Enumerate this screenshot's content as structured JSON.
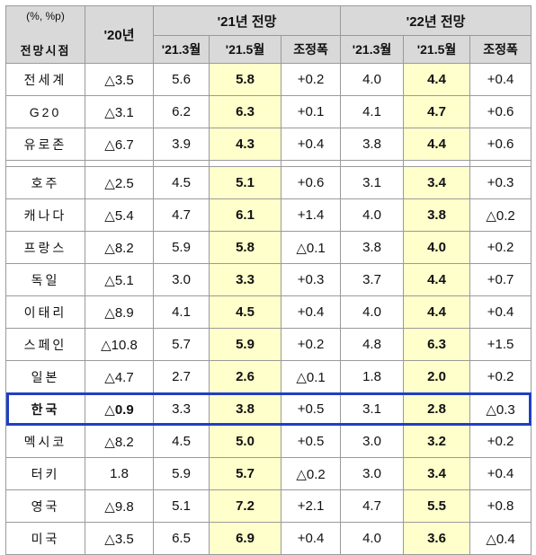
{
  "header": {
    "unit": "(%, %p)",
    "row_label": "전망시점",
    "year_20": "'20년",
    "group_21": "'21년 전망",
    "group_22": "'22년 전망",
    "sub_213": "'21.3월",
    "sub_215": "'21.5월",
    "sub_adj": "조정폭"
  },
  "groups": [
    {
      "rows": [
        {
          "country": "전세계",
          "y20": "△3.5",
          "a213": "5.6",
          "a215": "5.8",
          "aadj": "+0.2",
          "b213": "4.0",
          "b215": "4.4",
          "badj": "+0.4"
        },
        {
          "country": "G20",
          "y20": "△3.1",
          "a213": "6.2",
          "a215": "6.3",
          "aadj": "+0.1",
          "b213": "4.1",
          "b215": "4.7",
          "badj": "+0.6"
        },
        {
          "country": "유로존",
          "y20": "△6.7",
          "a213": "3.9",
          "a215": "4.3",
          "aadj": "+0.4",
          "b213": "3.8",
          "b215": "4.4",
          "badj": "+0.6"
        }
      ]
    },
    {
      "rows": [
        {
          "country": "호주",
          "y20": "△2.5",
          "a213": "4.5",
          "a215": "5.1",
          "aadj": "+0.6",
          "b213": "3.1",
          "b215": "3.4",
          "badj": "+0.3"
        },
        {
          "country": "캐나다",
          "y20": "△5.4",
          "a213": "4.7",
          "a215": "6.1",
          "aadj": "+1.4",
          "b213": "4.0",
          "b215": "3.8",
          "badj": "△0.2"
        },
        {
          "country": "프랑스",
          "y20": "△8.2",
          "a213": "5.9",
          "a215": "5.8",
          "aadj": "△0.1",
          "b213": "3.8",
          "b215": "4.0",
          "badj": "+0.2"
        },
        {
          "country": "독일",
          "y20": "△5.1",
          "a213": "3.0",
          "a215": "3.3",
          "aadj": "+0.3",
          "b213": "3.7",
          "b215": "4.4",
          "badj": "+0.7"
        },
        {
          "country": "이태리",
          "y20": "△8.9",
          "a213": "4.1",
          "a215": "4.5",
          "aadj": "+0.4",
          "b213": "4.0",
          "b215": "4.4",
          "badj": "+0.4"
        },
        {
          "country": "스페인",
          "y20": "△10.8",
          "a213": "5.7",
          "a215": "5.9",
          "aadj": "+0.2",
          "b213": "4.8",
          "b215": "6.3",
          "badj": "+1.5"
        },
        {
          "country": "일본",
          "y20": "△4.7",
          "a213": "2.7",
          "a215": "2.6",
          "aadj": "△0.1",
          "b213": "1.8",
          "b215": "2.0",
          "badj": "+0.2"
        },
        {
          "country": "한국",
          "y20": "△0.9",
          "a213": "3.3",
          "a215": "3.8",
          "aadj": "+0.5",
          "b213": "3.1",
          "b215": "2.8",
          "badj": "△0.3",
          "highlight": true
        },
        {
          "country": "멕시코",
          "y20": "△8.2",
          "a213": "4.5",
          "a215": "5.0",
          "aadj": "+0.5",
          "b213": "3.0",
          "b215": "3.2",
          "badj": "+0.2"
        },
        {
          "country": "터키",
          "y20": "1.8",
          "a213": "5.9",
          "a215": "5.7",
          "aadj": "△0.2",
          "b213": "3.0",
          "b215": "3.4",
          "badj": "+0.4"
        },
        {
          "country": "영국",
          "y20": "△9.8",
          "a213": "5.1",
          "a215": "7.2",
          "aadj": "+2.1",
          "b213": "4.7",
          "b215": "5.5",
          "badj": "+0.8"
        },
        {
          "country": "미국",
          "y20": "△3.5",
          "a213": "6.5",
          "a215": "6.9",
          "aadj": "+0.4",
          "b213": "4.0",
          "b215": "3.6",
          "badj": "△0.4"
        }
      ]
    }
  ],
  "colors": {
    "header_bg": "#d9d9d9",
    "highlight_bg": "#ffffcc",
    "korea_frame": "#1f3fc4"
  }
}
